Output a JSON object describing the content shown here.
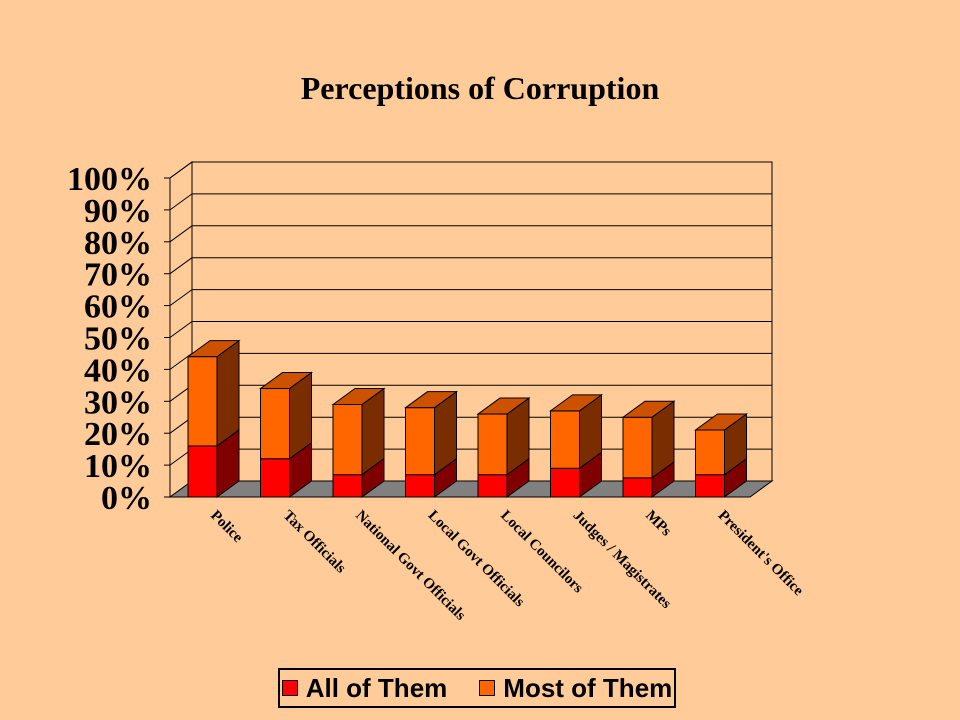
{
  "chart_data": {
    "type": "bar",
    "stacked": true,
    "three_d": true,
    "title": "Perceptions of Corruption",
    "categories": [
      "Police",
      "Tax Officials",
      "National Govt Officials",
      "Local Govt Officials",
      "Local Councilors",
      "Judges / Magistrates",
      "MPs",
      "President's Office"
    ],
    "series": [
      {
        "name": "All of Them",
        "color": "#FF0000",
        "side_color": "#800000",
        "values": [
          16,
          12,
          7,
          7,
          7,
          9,
          6,
          7
        ]
      },
      {
        "name": "Most of Them",
        "color": "#FF6600",
        "side_color": "#7A2E00",
        "values": [
          28,
          22,
          22,
          21,
          19,
          18,
          19,
          14
        ]
      }
    ],
    "ylim": [
      0,
      100
    ],
    "yticks": [
      "0%",
      "10%",
      "20%",
      "30%",
      "40%",
      "50%",
      "60%",
      "70%",
      "80%",
      "90%",
      "100%"
    ],
    "grid": true,
    "legend_position": "bottom"
  }
}
